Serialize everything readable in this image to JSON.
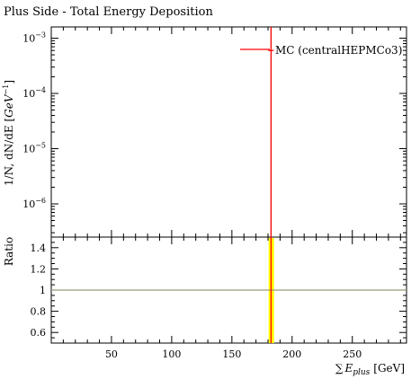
{
  "chart_data": [
    {
      "type": "line",
      "title": "Plus Side - Total Energy Deposition",
      "ylabel_parts": {
        "prefix": "1/N, dN/dE [",
        "unit": "GeV",
        "exp": "−1",
        "suffix": "]"
      },
      "y_scale": "log",
      "ylim": [
        2.5e-07,
        0.0016
      ],
      "y_ticks": [
        {
          "value": 1e-06,
          "base": "10",
          "exp": "−6"
        },
        {
          "value": 1e-05,
          "base": "10",
          "exp": "−5"
        },
        {
          "value": 0.0001,
          "base": "10",
          "exp": "−4"
        },
        {
          "value": 0.001,
          "base": "10",
          "exp": "−3"
        }
      ],
      "xlim": [
        0,
        295
      ],
      "series": [
        {
          "name": "MC (centralHEPMCo3)",
          "color": "#ff0000",
          "points": [
            {
              "x": 182.5,
              "y": 0.0006,
              "yerr_low": 2.5e-07,
              "yerr_high": 0.0016
            }
          ]
        }
      ],
      "legend": {
        "entry": "MC (centralHEPMCo3)",
        "placement": "top-right"
      }
    },
    {
      "type": "line",
      "ylabel": "Ratio",
      "ylim": [
        0.5,
        1.5
      ],
      "y_ticks": [
        "0.6",
        "0.8",
        "1",
        "1.2",
        "1.4"
      ],
      "y_tick_values": [
        0.6,
        0.8,
        1.0,
        1.2,
        1.4
      ],
      "reference_line": {
        "y": 1.0,
        "color": "#999977"
      },
      "error_band": {
        "x_low": 180.5,
        "x_high": 185.0,
        "color": "#ffff00"
      },
      "xlim": [
        0,
        295
      ],
      "x_ticks": [
        "50",
        "100",
        "150",
        "200",
        "250"
      ],
      "x_tick_values": [
        50,
        100,
        150,
        200,
        250
      ],
      "xlabel_parts": {
        "sum": "∑",
        "var": "E",
        "sub": "plus",
        "unit": "[GeV]"
      }
    }
  ]
}
